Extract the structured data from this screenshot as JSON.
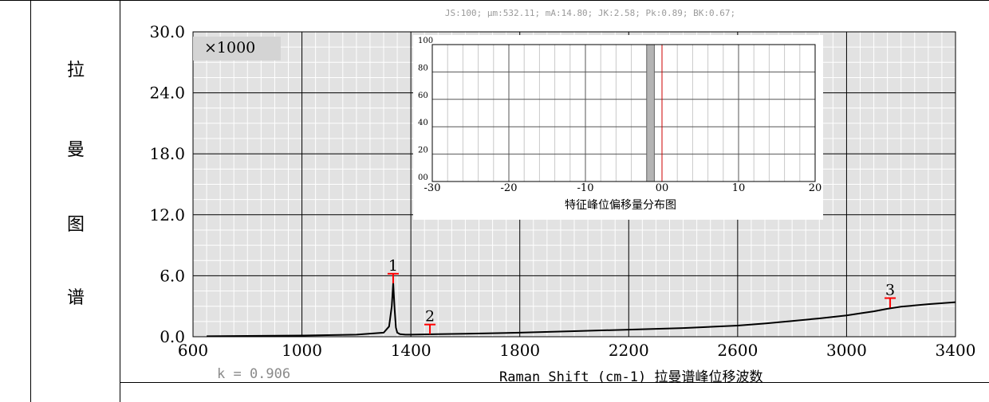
{
  "side_label": [
    "拉",
    "曼",
    "图",
    "谱"
  ],
  "stats_line": "JS:100;  μm:532.11;  mA:14.80;  JK:2.58;  Pk:0.89;  BK:0.67;",
  "k_value": "k = 0.906",
  "chart_data": {
    "type": "line",
    "xlabel": "Raman Shift (cm-1)  拉曼谱峰位移波数",
    "ylabel": "",
    "y_multiplier": "×1000",
    "xlim": [
      600,
      3400
    ],
    "ylim": [
      0,
      30
    ],
    "x_ticks": [
      "600",
      "1000",
      "1400",
      "1800",
      "2200",
      "2600",
      "3000",
      "3400"
    ],
    "y_ticks": [
      "0.0",
      "6.0",
      "12.0",
      "18.0",
      "24.0",
      "30.0"
    ],
    "grid": true,
    "series": [
      {
        "x": [
          650,
          800,
          1000,
          1200,
          1300,
          1320,
          1330,
          1335,
          1340,
          1345,
          1350,
          1360,
          1380,
          1400,
          1500,
          1600,
          1800,
          2000,
          2200,
          2400,
          2600,
          2700,
          2800,
          2900,
          3000,
          3050,
          3100,
          3150,
          3200,
          3300,
          3400
        ],
        "y": [
          0.05,
          0.08,
          0.12,
          0.2,
          0.4,
          1.0,
          3.0,
          5.3,
          2.8,
          0.9,
          0.4,
          0.25,
          0.2,
          0.2,
          0.25,
          0.3,
          0.4,
          0.55,
          0.7,
          0.85,
          1.1,
          1.3,
          1.55,
          1.8,
          2.1,
          2.3,
          2.5,
          2.75,
          2.95,
          3.2,
          3.4
        ]
      }
    ],
    "peak_markers": [
      {
        "label": "1",
        "x": 1335,
        "y": 6.2
      },
      {
        "label": "2",
        "x": 1470,
        "y": 1.2
      },
      {
        "label": "3",
        "x": 3160,
        "y": 3.8
      }
    ],
    "inset": {
      "type": "bar",
      "title": "特征峰位偏移量分布图",
      "xlim": [
        -30,
        20
      ],
      "ylim": [
        0,
        100
      ],
      "x_ticks": [
        "-30",
        "-20",
        "-10",
        "00",
        "10",
        "20"
      ],
      "y_ticks": [
        "00",
        "20",
        "40",
        "60",
        "80",
        "100"
      ],
      "bars": [
        {
          "x0": -2,
          "x1": -1,
          "height": 100
        }
      ],
      "reference_line_x": 0,
      "colors": {
        "bar": "#b4b4b4",
        "reference": "#cc0000"
      }
    },
    "colors": {
      "line": "#000000",
      "markers": "#ff0000",
      "background": "#e2e2e2"
    }
  }
}
